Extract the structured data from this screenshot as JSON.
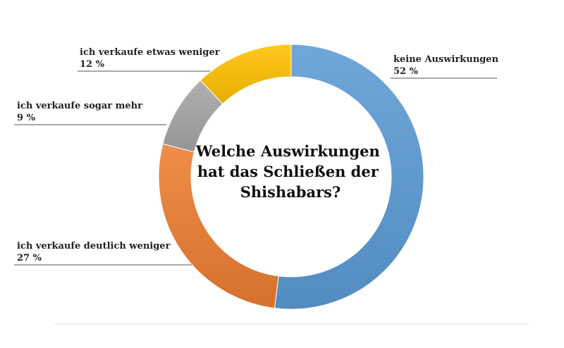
{
  "chart_data": {
    "type": "pie",
    "variant": "donut",
    "title_lines": [
      "Welche Auswirkungen",
      "hat das Schließen der",
      "Shishabars?"
    ],
    "unit": "%",
    "slices": [
      {
        "label": "keine Auswirkungen",
        "value": 52,
        "value_label": "52 %",
        "color": "#5B9BD5"
      },
      {
        "label": "ich verkaufe deutlich weniger",
        "value": 27,
        "value_label": "27 %",
        "color": "#ED7D31"
      },
      {
        "label": "ich verkaufe sogar mehr",
        "value": 9,
        "value_label": "9 %",
        "color": "#A5A5A5"
      },
      {
        "label": "ich verkaufe etwas weniger",
        "value": 12,
        "value_label": "12 %",
        "color": "#FFC000"
      }
    ],
    "grid": false,
    "legend": "none (callout labels)"
  }
}
